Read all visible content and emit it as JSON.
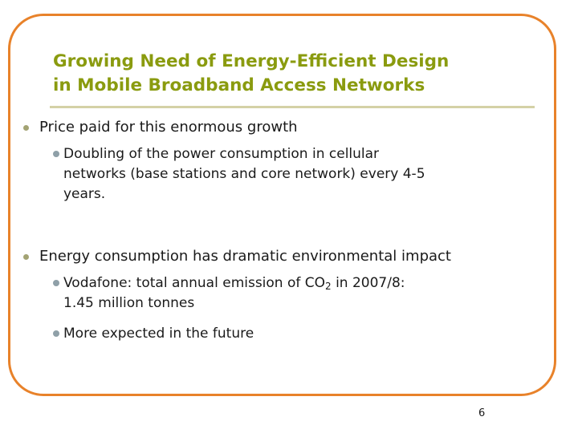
{
  "slide": {
    "title_line1": "Growing Need of Energy-Efficient Design",
    "title_line2": "in Mobile Broadband Access Networks",
    "bullets": [
      {
        "text": "Price paid for this enormous growth",
        "subs": [
          {
            "line1": "Doubling of the power consumption in cellular",
            "line2": "networks (base stations and core network) every 4-5",
            "line3": "years."
          }
        ]
      },
      {
        "text": "Energy consumption has dramatic environmental impact",
        "subs": [
          {
            "pre": "Vodafone: total annual emission of CO",
            "subscript": "2",
            "post": " in 2007/8:",
            "line2": "1.45 million tonnes"
          },
          {
            "line1": "More expected in the future"
          }
        ]
      }
    ],
    "page_number": "6"
  },
  "colors": {
    "frame": "#e8822a",
    "title": "#8a9b0f",
    "title_rule": "#d4d1a6",
    "bullet": "#a3a373",
    "sub_bullet": "#8fa0a8"
  }
}
